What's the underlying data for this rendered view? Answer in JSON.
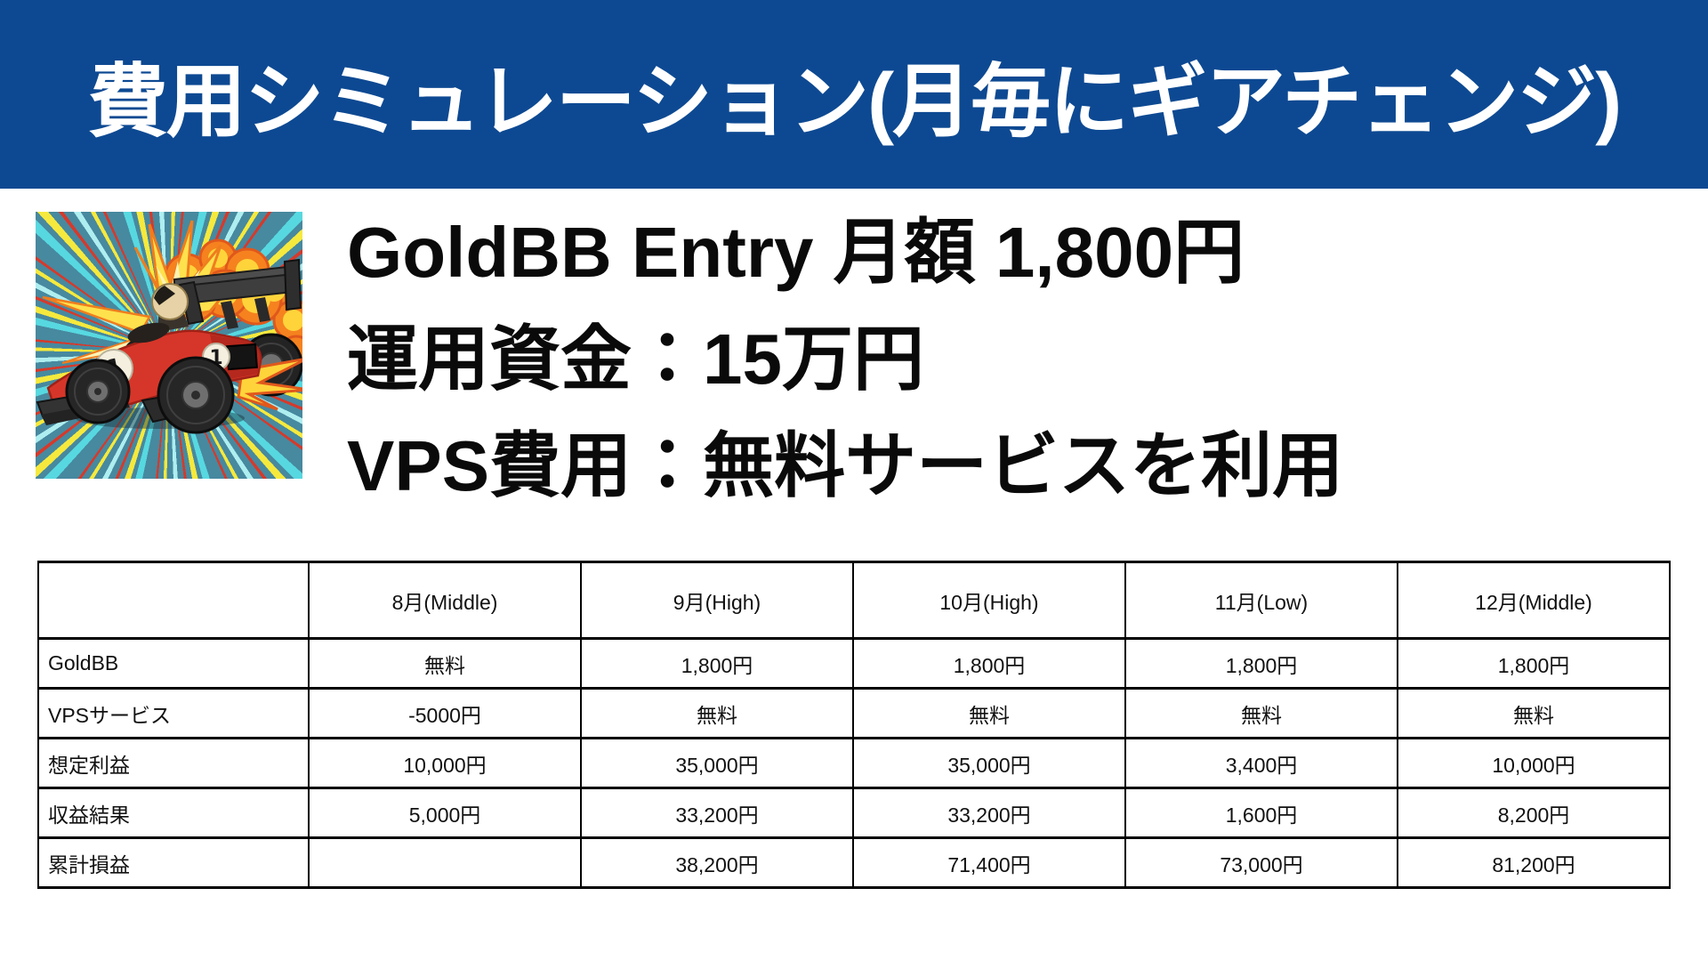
{
  "header": {
    "title": "費用シミュレーション(月毎にギアチェンジ)",
    "bg_color": "#0d4992",
    "text_color": "#ffffff"
  },
  "hero": {
    "lines": [
      "GoldBB Entry 月額 1,800円",
      "運用資金：15万円",
      "VPS費用：無料サービスを利用"
    ],
    "illustration": {
      "name": "comic-f1-race-car-with-explosion",
      "car_number": "1",
      "palette": {
        "ray_base": "#47899f",
        "ray_cyan": "#57d8e0",
        "ray_yellow": "#f6e93d",
        "ray_red": "#d6392b",
        "car_red": "#d63629",
        "explosion_orange": "#f5821f",
        "explosion_yellow": "#ffd43b"
      }
    }
  },
  "table": {
    "columns": [
      "",
      "8月(Middle)",
      "9月(High)",
      "10月(High)",
      "11月(Low)",
      "12月(Middle)"
    ],
    "rows": [
      {
        "label": "GoldBB",
        "values": [
          "無料",
          "1,800円",
          "1,800円",
          "1,800円",
          "1,800円"
        ]
      },
      {
        "label": "VPSサービス",
        "values": [
          "-5000円",
          "無料",
          "無料",
          "無料",
          "無料"
        ]
      },
      {
        "label": "想定利益",
        "values": [
          "10,000円",
          "35,000円",
          "35,000円",
          "3,400円",
          "10,000円"
        ]
      },
      {
        "label": "収益結果",
        "values": [
          "5,000円",
          "33,200円",
          "33,200円",
          "1,600円",
          "8,200円"
        ]
      },
      {
        "label": "累計損益",
        "values": [
          "",
          "38,200円",
          "71,400円",
          "73,000円",
          "81,200円"
        ]
      }
    ],
    "border_color": "#000000"
  }
}
